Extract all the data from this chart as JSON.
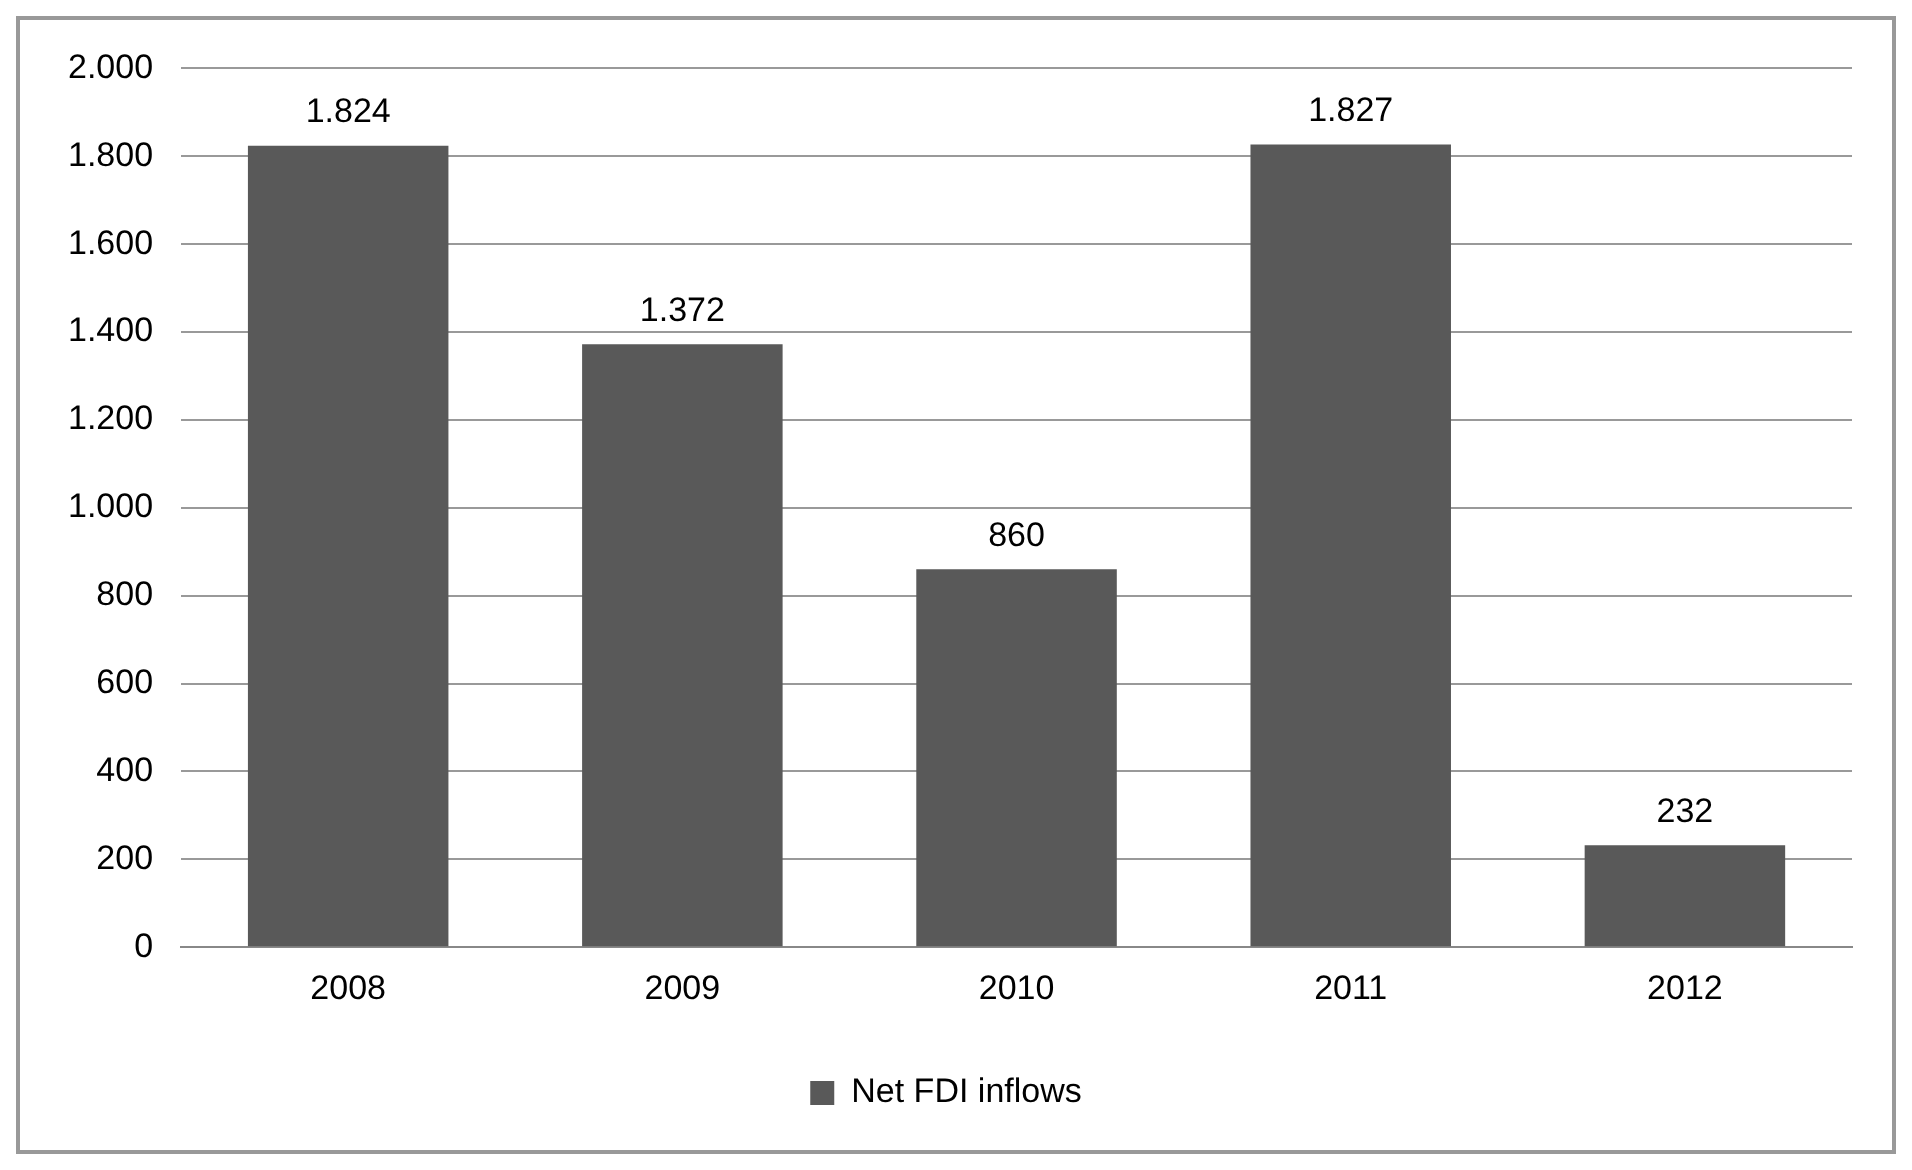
{
  "chart_data": {
    "type": "bar",
    "categories": [
      "2008",
      "2009",
      "2010",
      "2011",
      "2012"
    ],
    "series": [
      {
        "name": "Net FDI inflows",
        "color": "#595959",
        "values": [
          1824,
          1372,
          860,
          1827,
          232
        ],
        "value_labels": [
          "1.824",
          "1.372",
          "860",
          "1.827",
          "232"
        ]
      }
    ],
    "ylim": [
      0,
      2000
    ],
    "yticks": [
      {
        "value": 0,
        "label": "0"
      },
      {
        "value": 200,
        "label": "200"
      },
      {
        "value": 400,
        "label": "400"
      },
      {
        "value": 600,
        "label": "600"
      },
      {
        "value": 800,
        "label": "800"
      },
      {
        "value": 1000,
        "label": "1.000"
      },
      {
        "value": 1200,
        "label": "1.200"
      },
      {
        "value": 1400,
        "label": "1.400"
      },
      {
        "value": 1600,
        "label": "1.600"
      },
      {
        "value": 1800,
        "label": "1.800"
      },
      {
        "value": 2000,
        "label": "2.000"
      }
    ],
    "grid": "y",
    "legend": "bottom"
  }
}
